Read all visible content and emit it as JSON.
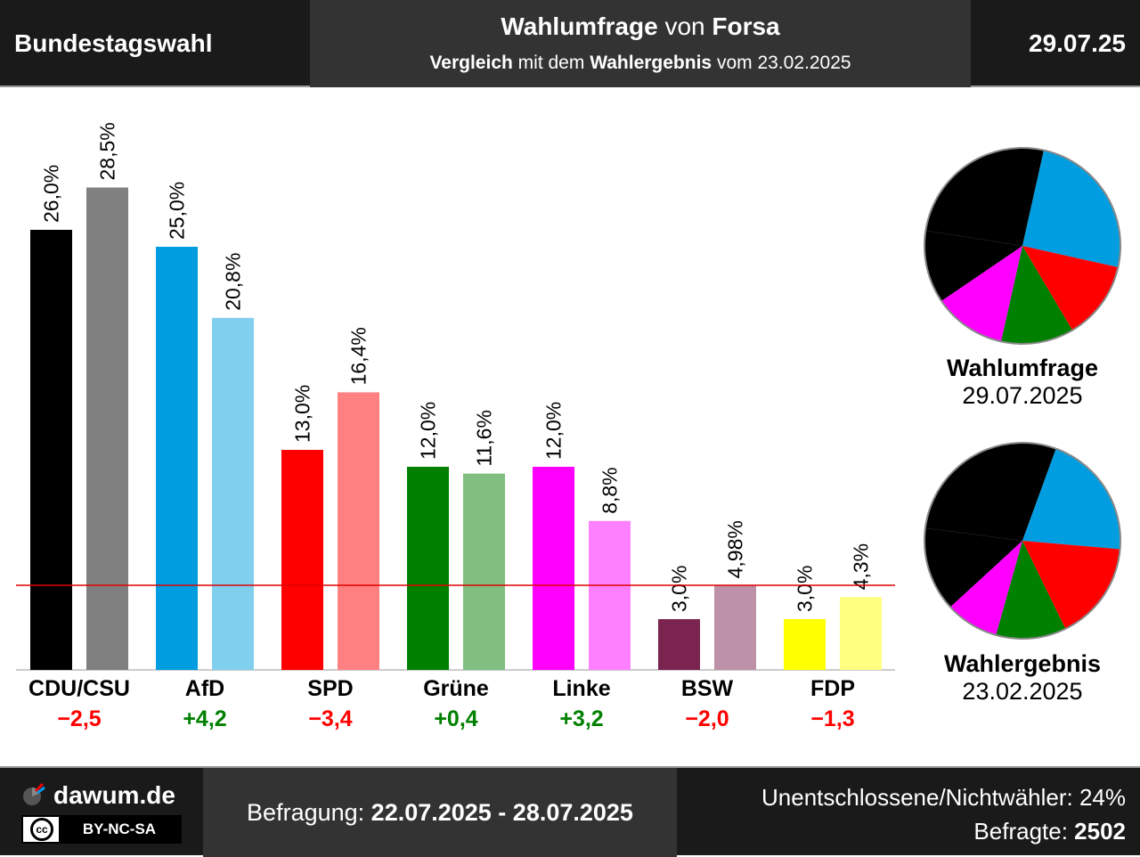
{
  "header": {
    "left_title": "Bundestagswahl",
    "mid_line1_bold1": "Wahlumfrage",
    "mid_line1_normal": " von ",
    "mid_line1_bold2": "Forsa",
    "mid_line2_bold1": "Vergleich",
    "mid_line2_normal1": " mit dem ",
    "mid_line2_bold2": "Wahlergebnis",
    "mid_line2_normal2": " vom 23.02.2025",
    "date": "29.07.25"
  },
  "chart_data": {
    "type": "bar",
    "categories": [
      "CDU/CSU",
      "AfD",
      "SPD",
      "Grüne",
      "Linke",
      "BSW",
      "FDP"
    ],
    "series": [
      {
        "name": "Wahlumfrage",
        "values": [
          26.0,
          25.0,
          13.0,
          12.0,
          12.0,
          3.0,
          3.0
        ],
        "labels": [
          "26,0%",
          "25,0%",
          "13,0%",
          "12,0%",
          "12,0%",
          "3,0%",
          "3,0%"
        ],
        "colors": [
          "#000000",
          "#009ee0",
          "#ff0000",
          "#008000",
          "#ff00ff",
          "#7b2450",
          "#ffff00"
        ]
      },
      {
        "name": "Wahlergebnis",
        "values": [
          28.5,
          20.8,
          16.4,
          11.6,
          8.8,
          4.98,
          4.3
        ],
        "labels": [
          "28,5%",
          "20,8%",
          "16,4%",
          "11,6%",
          "8,8%",
          "4,98%",
          "4,3%"
        ],
        "colors": [
          "#808080",
          "#80cfef",
          "#ff8080",
          "#80bf80",
          "#ff80ff",
          "#bd91a7",
          "#ffff80"
        ]
      }
    ],
    "differences": [
      "−2,5",
      "+4,2",
      "−3,4",
      "+0,4",
      "+3,2",
      "−2,0",
      "−1,3"
    ],
    "difference_colors": [
      "#ff0000",
      "#008000",
      "#ff0000",
      "#008000",
      "#008000",
      "#ff0000",
      "#ff0000"
    ],
    "threshold": 5,
    "threshold_color": "#e00000",
    "ylim": [
      0,
      30
    ],
    "pies": [
      {
        "title": "Wahlumfrage",
        "subtitle": "29.07.2025",
        "values": [
          26.0,
          25.0,
          13.0,
          12.0,
          12.0,
          12.0
        ],
        "colors": [
          "#000000",
          "#009ee0",
          "#ff0000",
          "#008000",
          "#ff00ff",
          "#000000"
        ]
      },
      {
        "title": "Wahlergebnis",
        "subtitle": "23.02.2025",
        "values": [
          28.5,
          20.8,
          16.4,
          11.6,
          8.8,
          13.9
        ],
        "colors": [
          "#000000",
          "#009ee0",
          "#ff0000",
          "#008000",
          "#ff00ff",
          "#000000"
        ]
      }
    ]
  },
  "footer": {
    "brand": "dawum.de",
    "license": "BY-NC-SA",
    "license_icon": "cc-icon",
    "survey_label": "Befragung: ",
    "survey_period": "22.07.2025 - 28.07.2025",
    "undecided": "Unentschlossene/Nichtwähler: 24%",
    "respondents_label": "Befragte: ",
    "respondents": "2502"
  }
}
